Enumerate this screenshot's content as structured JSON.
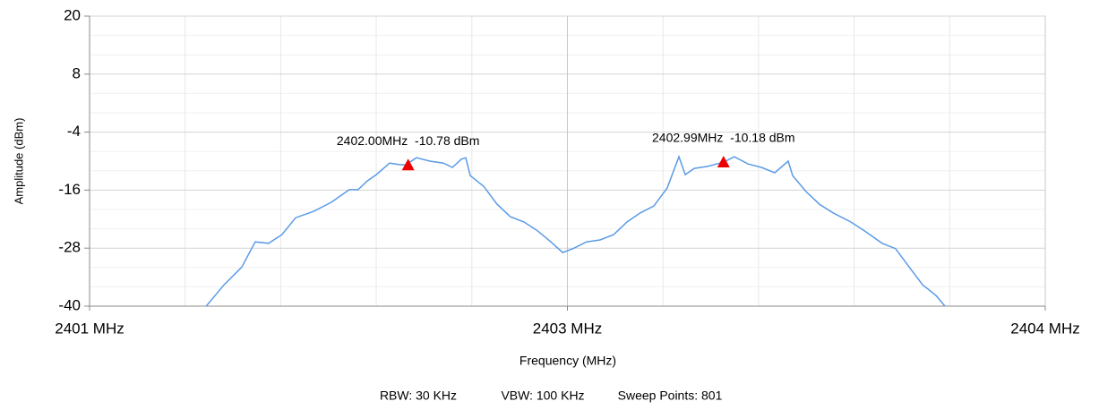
{
  "chart_data": {
    "type": "line",
    "xlabel": "Frequency (MHz)",
    "ylabel": "Amplitude (dBm)",
    "x": [
      2401.366,
      2401.422,
      2401.478,
      2401.52,
      2401.562,
      2401.604,
      2401.647,
      2401.703,
      2401.759,
      2401.815,
      2401.843,
      2401.872,
      2401.9,
      2401.942,
      2401.97,
      2401.992,
      2402.026,
      2402.068,
      2402.111,
      2402.139,
      2402.167,
      2402.181,
      2402.195,
      2402.237,
      2402.279,
      2402.321,
      2402.364,
      2402.406,
      2402.448,
      2402.485,
      2402.518,
      2402.56,
      2402.603,
      2402.645,
      2402.687,
      2402.729,
      2402.771,
      2402.813,
      2402.85,
      2402.87,
      2402.898,
      2402.94,
      2402.991,
      2403.024,
      2403.067,
      2403.109,
      2403.151,
      2403.193,
      2403.207,
      2403.249,
      2403.291,
      2403.334,
      2403.39,
      2403.432,
      2403.488,
      2403.53,
      2403.573,
      2403.615,
      2403.657,
      2403.685
    ],
    "series": [
      {
        "color": "#5b9be6",
        "values": [
          -40,
          -35.6,
          -31.9,
          -26.7,
          -27.0,
          -25.2,
          -21.7,
          -20.4,
          -18.5,
          -15.9,
          -15.9,
          -14.1,
          -12.8,
          -10.4,
          -10.7,
          -10.8,
          -9.3,
          -10.0,
          -10.4,
          -11.3,
          -9.6,
          -9.3,
          -13.0,
          -15.2,
          -18.9,
          -21.5,
          -22.6,
          -24.4,
          -26.7,
          -28.9,
          -28.1,
          -26.7,
          -26.3,
          -25.2,
          -22.6,
          -20.7,
          -19.3,
          -15.6,
          -9.1,
          -12.8,
          -11.5,
          -11.1,
          -10.2,
          -9.1,
          -10.6,
          -11.3,
          -12.4,
          -10.0,
          -13.0,
          -16.3,
          -18.9,
          -20.7,
          -22.6,
          -24.4,
          -27.0,
          -28.1,
          -31.9,
          -35.6,
          -37.8,
          -40
        ]
      }
    ],
    "markers": [
      {
        "x": 2402.0,
        "value": -10.78,
        "label": "2402.00MHz  -10.78 dBm",
        "color": "#ee0000"
      },
      {
        "x": 2402.99,
        "value": -10.18,
        "label": "2402.99MHz  -10.18 dBm",
        "color": "#ee0000"
      }
    ],
    "xlim": [
      2401,
      2404
    ],
    "xticks": [
      {
        "value": 2401,
        "label": "2401 MHz"
      },
      {
        "value": 2402.5,
        "label": "2403 MHz"
      },
      {
        "value": 2404,
        "label": "2404 MHz"
      }
    ],
    "xgrid_minor": [
      2401.3,
      2401.6,
      2401.9,
      2402.2,
      2402.8,
      2403.1,
      2403.4,
      2403.7
    ],
    "ylim": [
      -40,
      20
    ],
    "yticks": [
      20,
      8,
      -4,
      -16,
      -28,
      -40
    ],
    "ygrid_minor": [
      16,
      12,
      4,
      0,
      -8,
      -12,
      -20,
      -24,
      -32,
      -36
    ],
    "grid": true,
    "footer": [
      "RBW: 30 KHz",
      "VBW: 100 KHz",
      "Sweep Points: 801"
    ]
  }
}
